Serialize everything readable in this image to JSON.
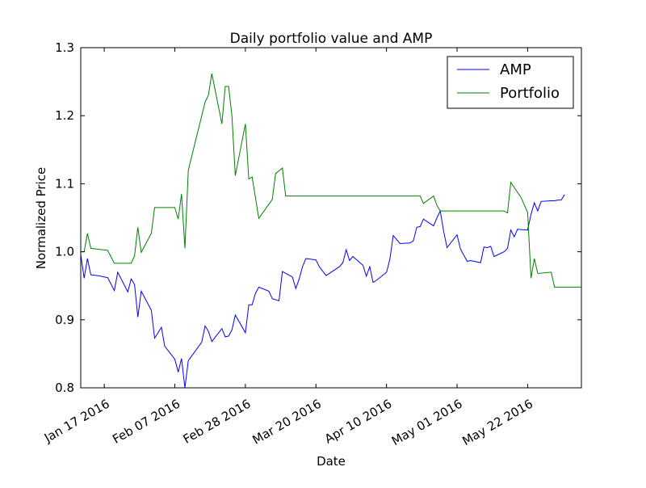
{
  "chart_data": {
    "type": "line",
    "title": "Daily portfolio value and AMP",
    "xlabel": "Date",
    "ylabel": "Normalized Price",
    "xlim": [
      "2016-01-10",
      "2016-06-07"
    ],
    "ylim": [
      0.8,
      1.3
    ],
    "x_ticks": [
      "2016-01-17",
      "2016-02-07",
      "2016-02-28",
      "2016-03-20",
      "2016-04-10",
      "2016-05-01",
      "2016-05-22"
    ],
    "x_tick_labels": [
      "Jan 17 2016",
      "Feb 07 2016",
      "Feb 28 2016",
      "Mar 20 2016",
      "Apr 10 2016",
      "May 01 2016",
      "May 22 2016"
    ],
    "y_ticks": [
      0.8,
      0.9,
      1.0,
      1.1,
      1.2,
      1.3
    ],
    "y_tick_labels": [
      "0.8",
      "0.9",
      "1.0",
      "1.1",
      "1.2",
      "1.3"
    ],
    "legend_position": "top-right",
    "grid": false,
    "series": [
      {
        "name": "AMP",
        "color": "#0000ff",
        "points": [
          [
            "2016-01-10",
            0.996
          ],
          [
            "2016-01-11",
            0.961
          ],
          [
            "2016-01-12",
            0.99
          ],
          [
            "2016-01-13",
            0.966
          ],
          [
            "2016-01-15",
            0.965
          ],
          [
            "2016-01-18",
            0.962
          ],
          [
            "2016-01-20",
            0.943
          ],
          [
            "2016-01-21",
            0.97
          ],
          [
            "2016-01-24",
            0.941
          ],
          [
            "2016-01-25",
            0.96
          ],
          [
            "2016-01-26",
            0.952
          ],
          [
            "2016-01-27",
            0.904
          ],
          [
            "2016-01-28",
            0.942
          ],
          [
            "2016-01-31",
            0.914
          ],
          [
            "2016-02-01",
            0.873
          ],
          [
            "2016-02-03",
            0.889
          ],
          [
            "2016-02-04",
            0.861
          ],
          [
            "2016-02-07",
            0.842
          ],
          [
            "2016-02-08",
            0.823
          ],
          [
            "2016-02-09",
            0.843
          ],
          [
            "2016-02-10",
            0.8
          ],
          [
            "2016-02-11",
            0.84
          ],
          [
            "2016-02-15",
            0.867
          ],
          [
            "2016-02-16",
            0.891
          ],
          [
            "2016-02-17",
            0.883
          ],
          [
            "2016-02-18",
            0.868
          ],
          [
            "2016-02-21",
            0.887
          ],
          [
            "2016-02-22",
            0.875
          ],
          [
            "2016-02-23",
            0.876
          ],
          [
            "2016-02-24",
            0.885
          ],
          [
            "2016-02-25",
            0.907
          ],
          [
            "2016-02-28",
            0.881
          ],
          [
            "2016-02-29",
            0.922
          ],
          [
            "2016-03-01",
            0.922
          ],
          [
            "2016-03-02",
            0.939
          ],
          [
            "2016-03-03",
            0.948
          ],
          [
            "2016-03-06",
            0.942
          ],
          [
            "2016-03-07",
            0.931
          ],
          [
            "2016-03-09",
            0.928
          ],
          [
            "2016-03-10",
            0.971
          ],
          [
            "2016-03-13",
            0.963
          ],
          [
            "2016-03-14",
            0.946
          ],
          [
            "2016-03-15",
            0.96
          ],
          [
            "2016-03-16",
            0.978
          ],
          [
            "2016-03-17",
            0.99
          ],
          [
            "2016-03-20",
            0.988
          ],
          [
            "2016-03-21",
            0.978
          ],
          [
            "2016-03-23",
            0.965
          ],
          [
            "2016-03-27",
            0.978
          ],
          [
            "2016-03-28",
            0.984
          ],
          [
            "2016-03-29",
            1.003
          ],
          [
            "2016-03-30",
            0.987
          ],
          [
            "2016-03-31",
            0.993
          ],
          [
            "2016-04-03",
            0.98
          ],
          [
            "2016-04-04",
            0.964
          ],
          [
            "2016-04-05",
            0.978
          ],
          [
            "2016-04-06",
            0.955
          ],
          [
            "2016-04-07",
            0.958
          ],
          [
            "2016-04-10",
            0.97
          ],
          [
            "2016-04-11",
            0.989
          ],
          [
            "2016-04-12",
            1.024
          ],
          [
            "2016-04-14",
            1.012
          ],
          [
            "2016-04-17",
            1.013
          ],
          [
            "2016-04-18",
            1.016
          ],
          [
            "2016-04-19",
            1.036
          ],
          [
            "2016-04-20",
            1.037
          ],
          [
            "2016-04-21",
            1.048
          ],
          [
            "2016-04-24",
            1.038
          ],
          [
            "2016-04-25",
            1.05
          ],
          [
            "2016-04-26",
            1.06
          ],
          [
            "2016-04-27",
            1.03
          ],
          [
            "2016-04-28",
            1.006
          ],
          [
            "2016-05-01",
            1.025
          ],
          [
            "2016-05-02",
            1.004
          ],
          [
            "2016-05-04",
            0.986
          ],
          [
            "2016-05-05",
            0.987
          ],
          [
            "2016-05-08",
            0.984
          ],
          [
            "2016-05-09",
            1.007
          ],
          [
            "2016-05-10",
            1.006
          ],
          [
            "2016-05-11",
            1.008
          ],
          [
            "2016-05-12",
            0.993
          ],
          [
            "2016-05-15",
            1.0
          ],
          [
            "2016-05-16",
            1.005
          ],
          [
            "2016-05-17",
            1.032
          ],
          [
            "2016-05-18",
            1.022
          ],
          [
            "2016-05-19",
            1.033
          ],
          [
            "2016-05-22",
            1.032
          ],
          [
            "2016-05-23",
            1.055
          ],
          [
            "2016-05-24",
            1.072
          ],
          [
            "2016-05-25",
            1.06
          ],
          [
            "2016-05-26",
            1.074
          ],
          [
            "2016-05-29",
            1.075
          ],
          [
            "2016-05-30",
            1.075
          ],
          [
            "2016-05-31",
            1.076
          ],
          [
            "2016-06-01",
            1.076
          ],
          [
            "2016-06-02",
            1.084
          ]
        ]
      },
      {
        "name": "Portfolio",
        "color": "#008000",
        "points": [
          [
            "2016-01-10",
            1.0
          ],
          [
            "2016-01-11",
            1.0
          ],
          [
            "2016-01-12",
            1.027
          ],
          [
            "2016-01-13",
            1.005
          ],
          [
            "2016-01-18",
            1.002
          ],
          [
            "2016-01-20",
            0.983
          ],
          [
            "2016-01-25",
            0.983
          ],
          [
            "2016-01-26",
            0.994
          ],
          [
            "2016-01-27",
            1.036
          ],
          [
            "2016-01-28",
            0.999
          ],
          [
            "2016-01-31",
            1.027
          ],
          [
            "2016-02-01",
            1.065
          ],
          [
            "2016-02-07",
            1.065
          ],
          [
            "2016-02-08",
            1.048
          ],
          [
            "2016-02-09",
            1.085
          ],
          [
            "2016-02-10",
            1.005
          ],
          [
            "2016-02-11",
            1.12
          ],
          [
            "2016-02-16",
            1.22
          ],
          [
            "2016-02-17",
            1.23
          ],
          [
            "2016-02-18",
            1.262
          ],
          [
            "2016-02-21",
            1.188
          ],
          [
            "2016-02-22",
            1.243
          ],
          [
            "2016-02-23",
            1.243
          ],
          [
            "2016-02-24",
            1.2
          ],
          [
            "2016-02-25",
            1.112
          ],
          [
            "2016-02-28",
            1.188
          ],
          [
            "2016-02-29",
            1.107
          ],
          [
            "2016-03-01",
            1.11
          ],
          [
            "2016-03-03",
            1.049
          ],
          [
            "2016-03-07",
            1.077
          ],
          [
            "2016-03-08",
            1.115
          ],
          [
            "2016-03-10",
            1.123
          ],
          [
            "2016-03-11",
            1.082
          ],
          [
            "2016-04-20",
            1.082
          ],
          [
            "2016-04-21",
            1.071
          ],
          [
            "2016-04-24",
            1.082
          ],
          [
            "2016-04-25",
            1.068
          ],
          [
            "2016-04-26",
            1.06
          ],
          [
            "2016-05-15",
            1.06
          ],
          [
            "2016-05-16",
            1.057
          ],
          [
            "2016-05-17",
            1.102
          ],
          [
            "2016-05-20",
            1.08
          ],
          [
            "2016-05-22",
            1.058
          ],
          [
            "2016-05-23",
            0.961
          ],
          [
            "2016-05-24",
            0.99
          ],
          [
            "2016-05-25",
            0.968
          ],
          [
            "2016-05-29",
            0.97
          ],
          [
            "2016-05-30",
            0.948
          ],
          [
            "2016-06-07",
            0.948
          ]
        ]
      }
    ]
  }
}
